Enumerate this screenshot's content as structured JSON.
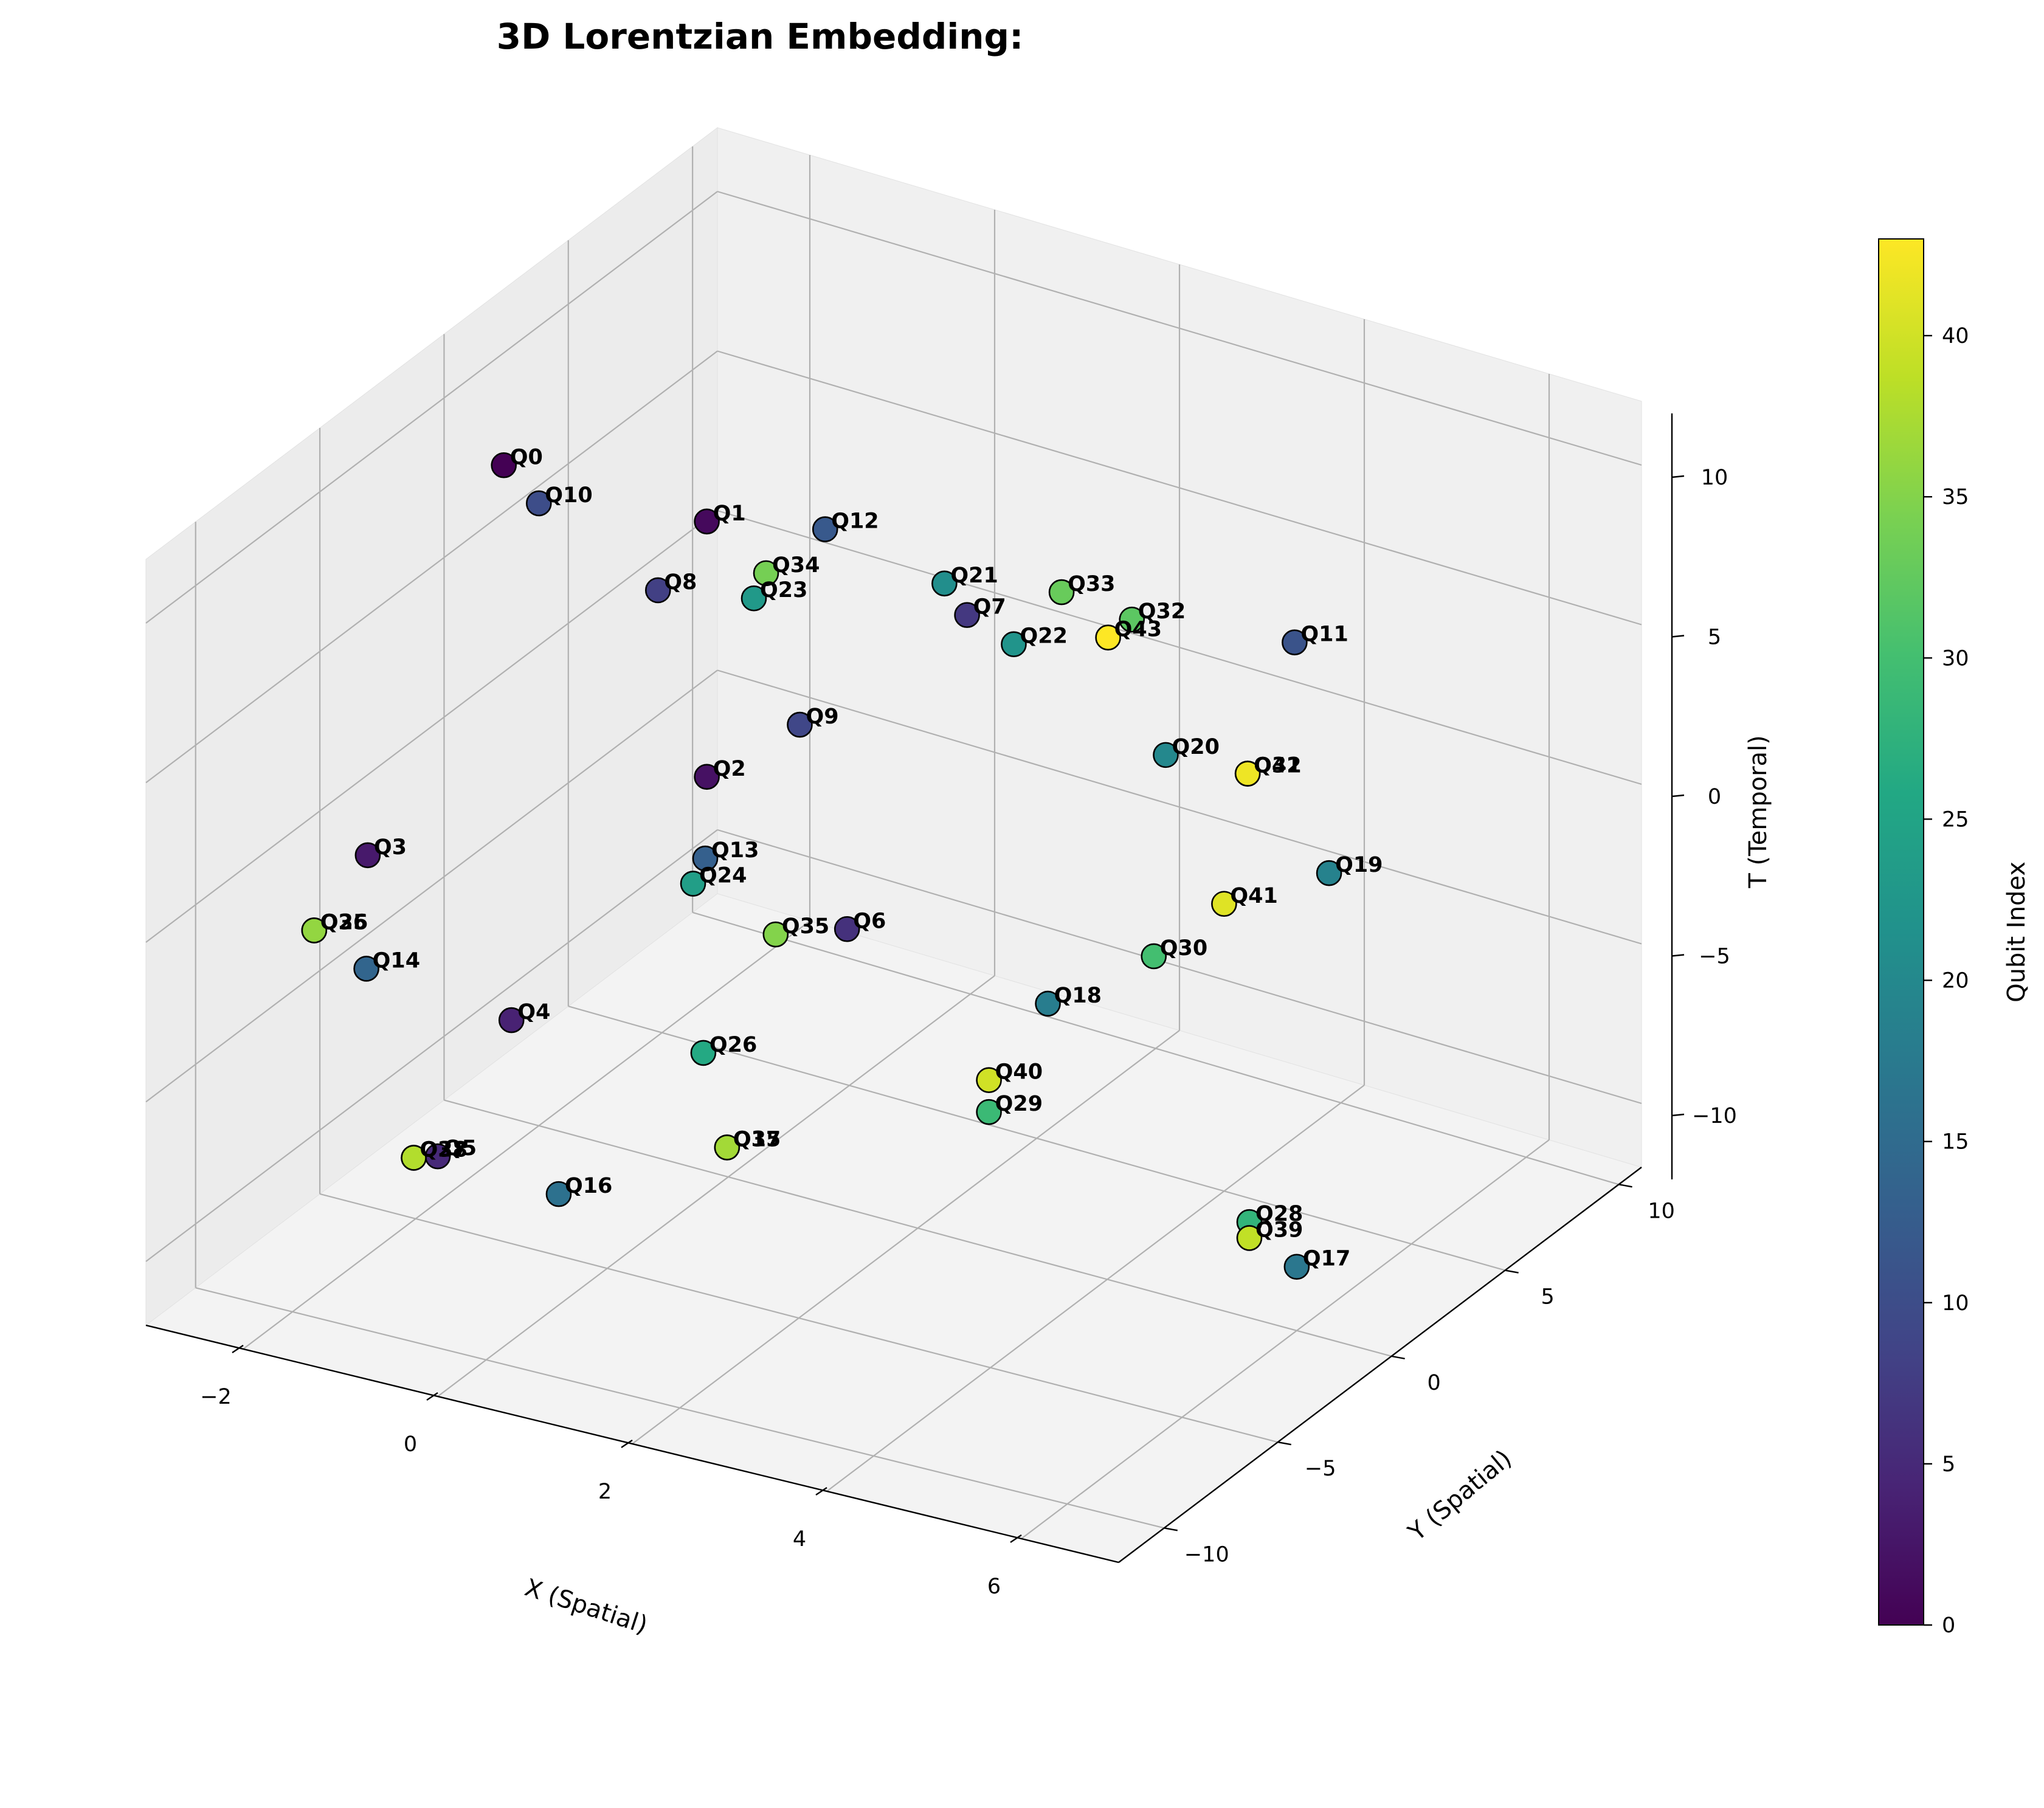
{
  "chart_data": {
    "type": "scatter",
    "title": "3D Lorentzian Embedding:",
    "xlabel": "X (Spatial)",
    "ylabel": "Y (Spatial)",
    "zlabel": "T (Temporal)",
    "colorbar_label": "Qubit Index",
    "colormap": "viridis",
    "colorbar_range": [
      0,
      43
    ],
    "colorbar_ticks": [
      "0",
      "5",
      "10",
      "15",
      "20",
      "25",
      "30",
      "35",
      "40"
    ],
    "xlim": [
      -3,
      7
    ],
    "ylim": [
      -12,
      11
    ],
    "zlim": [
      -12,
      12
    ],
    "x_ticks": [
      "−2",
      "0",
      "2",
      "4",
      "6"
    ],
    "y_ticks": [
      "−10",
      "−5",
      "0",
      "5",
      "10"
    ],
    "z_ticks": [
      "−10",
      "−5",
      "0",
      "5",
      "10"
    ],
    "grid": true,
    "points": [
      {
        "label": "Q0",
        "x": -2.5,
        "y": 0.5,
        "t": 8.0
      },
      {
        "label": "Q1",
        "x": -1.0,
        "y": 3.0,
        "t": 6.0
      },
      {
        "label": "Q2",
        "x": -1.0,
        "y": 3.0,
        "t": -2.0
      },
      {
        "label": "Q3",
        "x": -2.5,
        "y": -5.0,
        "t": -1.0
      },
      {
        "label": "Q4",
        "x": -1.0,
        "y": -5.0,
        "t": -5.0
      },
      {
        "label": "Q5",
        "x": -0.5,
        "y": -10.0,
        "t": -6.0
      },
      {
        "label": "Q6",
        "x": 1.0,
        "y": 1.0,
        "t": -4.0
      },
      {
        "label": "Q7",
        "x": 1.0,
        "y": 6.0,
        "t": 3.0
      },
      {
        "label": "Q8",
        "x": -1.0,
        "y": 1.0,
        "t": 5.0
      },
      {
        "label": "Q9",
        "x": 0.5,
        "y": 1.0,
        "t": 2.0
      },
      {
        "label": "Q10",
        "x": -2.0,
        "y": 0.0,
        "t": 7.5
      },
      {
        "label": "Q11",
        "x": 3.5,
        "y": 10.0,
        "t": 2.0
      },
      {
        "label": "Q12",
        "x": 0.0,
        "y": 4.0,
        "t": 6.0
      },
      {
        "label": "Q13",
        "x": -0.5,
        "y": 1.0,
        "t": -3.0
      },
      {
        "label": "Q14",
        "x": -2.0,
        "y": -7.0,
        "t": -3.0
      },
      {
        "label": "Q15",
        "x": 1.0,
        "y": -4.0,
        "t": -8.0
      },
      {
        "label": "Q16",
        "x": 0.5,
        "y": -9.0,
        "t": -7.0
      },
      {
        "label": "Q17",
        "x": 6.0,
        "y": 0.0,
        "t": -10.0
      },
      {
        "label": "Q18",
        "x": 3.0,
        "y": 1.5,
        "t": -5.0
      },
      {
        "label": "Q19",
        "x": 4.5,
        "y": 7.5,
        "t": -3.0
      },
      {
        "label": "Q20",
        "x": 3.0,
        "y": 6.5,
        "t": 0.0
      },
      {
        "label": "Q21",
        "x": 0.5,
        "y": 7.0,
        "t": 3.0
      },
      {
        "label": "Q22",
        "x": 1.5,
        "y": 6.0,
        "t": 2.5
      },
      {
        "label": "Q23",
        "x": -0.5,
        "y": 3.0,
        "t": 4.0
      },
      {
        "label": "Q24",
        "x": -0.5,
        "y": 0.5,
        "t": -3.5
      },
      {
        "label": "Q25",
        "x": -2.8,
        "y": -6.0,
        "t": -3.0
      },
      {
        "label": "Q26",
        "x": 0.5,
        "y": -3.0,
        "t": -6.0
      },
      {
        "label": "Q27",
        "x": -1.0,
        "y": -9.0,
        "t": -7.0
      },
      {
        "label": "Q28",
        "x": 5.5,
        "y": 0.0,
        "t": -9.0
      },
      {
        "label": "Q29",
        "x": 3.0,
        "y": -1.0,
        "t": -7.0
      },
      {
        "label": "Q30",
        "x": 3.5,
        "y": 4.0,
        "t": -4.5
      },
      {
        "label": "Q31",
        "x": 3.5,
        "y": 8.0,
        "t": -1.0
      },
      {
        "label": "Q32",
        "x": 2.0,
        "y": 9.0,
        "t": 2.0
      },
      {
        "label": "Q33",
        "x": 1.5,
        "y": 8.0,
        "t": 3.0
      },
      {
        "label": "Q34",
        "x": -0.5,
        "y": 3.5,
        "t": 4.5
      },
      {
        "label": "Q35",
        "x": 0.5,
        "y": 0.0,
        "t": -4.0
      },
      {
        "label": "Q36",
        "x": -2.8,
        "y": -6.0,
        "t": -3.0
      },
      {
        "label": "Q37",
        "x": 1.0,
        "y": -4.0,
        "t": -8.0
      },
      {
        "label": "Q38",
        "x": -1.0,
        "y": -9.0,
        "t": -7.0
      },
      {
        "label": "Q39",
        "x": 5.5,
        "y": 0.0,
        "t": -9.5
      },
      {
        "label": "Q40",
        "x": 3.0,
        "y": -1.0,
        "t": -6.0
      },
      {
        "label": "Q41",
        "x": 4.0,
        "y": 5.0,
        "t": -3.0
      },
      {
        "label": "Q42",
        "x": 3.5,
        "y": 8.0,
        "t": -1.0
      },
      {
        "label": "Q43",
        "x": 2.0,
        "y": 8.0,
        "t": 2.0
      }
    ]
  }
}
